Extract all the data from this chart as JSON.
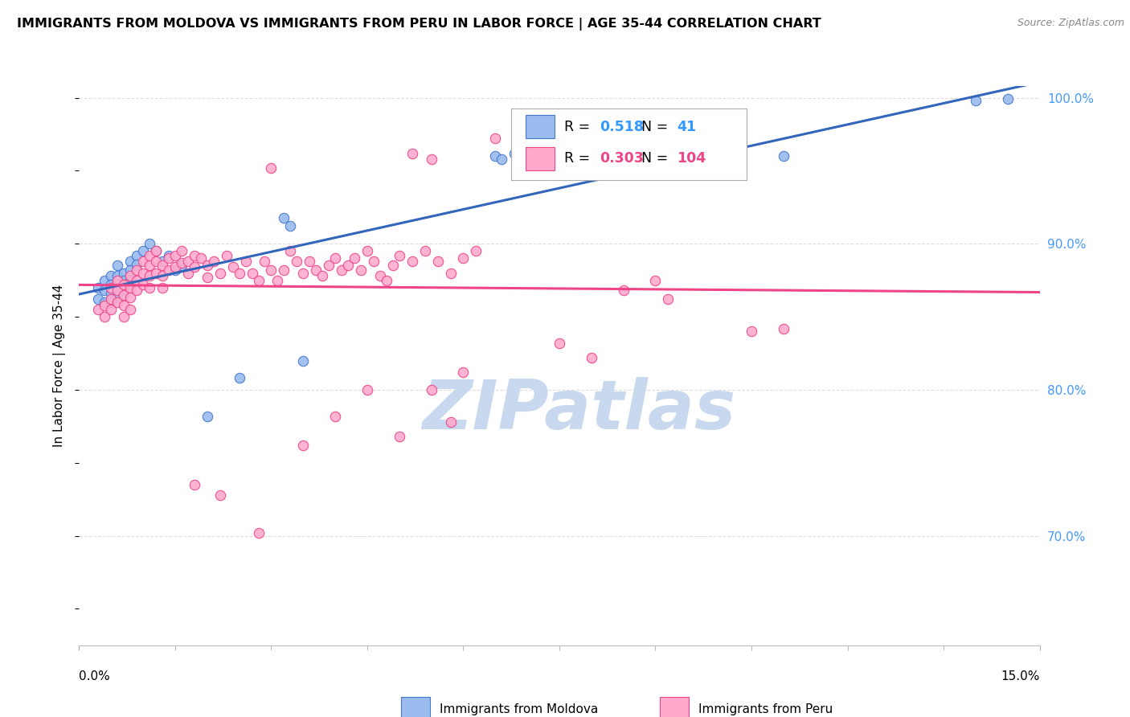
{
  "title": "IMMIGRANTS FROM MOLDOVA VS IMMIGRANTS FROM PERU IN LABOR FORCE | AGE 35-44 CORRELATION CHART",
  "source": "Source: ZipAtlas.com",
  "xmin": 0.0,
  "xmax": 0.15,
  "ymin": 0.625,
  "ymax": 1.008,
  "legend_moldova": "Immigrants from Moldova",
  "legend_peru": "Immigrants from Peru",
  "R_moldova": "0.518",
  "N_moldova": "41",
  "R_peru": "0.303",
  "N_peru": "104",
  "color_moldova_fill": "#99BBEE",
  "color_moldova_edge": "#4477CC",
  "color_peru_fill": "#FFAACC",
  "color_peru_edge": "#EE4488",
  "color_moldova_line": "#3366BB",
  "color_peru_line": "#EE4488",
  "color_R_blue": "#3399FF",
  "color_R_peru": "#EE4488",
  "watermark_color": "#C8D8EE",
  "grid_color": "#DDDDDD",
  "right_tick_color": "#4499FF",
  "yticks_right": [
    0.7,
    0.8,
    0.9,
    1.0
  ],
  "moldova_x": [
    0.003,
    0.003,
    0.004,
    0.004,
    0.004,
    0.005,
    0.005,
    0.005,
    0.005,
    0.006,
    0.006,
    0.006,
    0.006,
    0.007,
    0.007,
    0.007,
    0.008,
    0.008,
    0.008,
    0.009,
    0.009,
    0.01,
    0.011,
    0.012,
    0.013,
    0.014,
    0.015,
    0.016,
    0.02,
    0.025,
    0.032,
    0.033,
    0.035,
    0.065,
    0.066,
    0.068,
    0.085,
    0.095,
    0.11,
    0.14,
    0.145
  ],
  "moldova_y": [
    0.87,
    0.862,
    0.875,
    0.868,
    0.86,
    0.878,
    0.872,
    0.866,
    0.86,
    0.885,
    0.878,
    0.87,
    0.864,
    0.88,
    0.875,
    0.868,
    0.888,
    0.882,
    0.875,
    0.892,
    0.886,
    0.895,
    0.9,
    0.895,
    0.888,
    0.892,
    0.882,
    0.885,
    0.782,
    0.808,
    0.918,
    0.912,
    0.82,
    0.96,
    0.958,
    0.962,
    0.952,
    0.962,
    0.96,
    0.998,
    0.999
  ],
  "peru_x": [
    0.003,
    0.004,
    0.004,
    0.005,
    0.005,
    0.005,
    0.006,
    0.006,
    0.006,
    0.007,
    0.007,
    0.007,
    0.007,
    0.008,
    0.008,
    0.008,
    0.008,
    0.009,
    0.009,
    0.009,
    0.01,
    0.01,
    0.01,
    0.011,
    0.011,
    0.011,
    0.011,
    0.012,
    0.012,
    0.012,
    0.013,
    0.013,
    0.013,
    0.014,
    0.014,
    0.015,
    0.015,
    0.016,
    0.016,
    0.017,
    0.017,
    0.018,
    0.018,
    0.019,
    0.02,
    0.02,
    0.021,
    0.022,
    0.023,
    0.024,
    0.025,
    0.026,
    0.027,
    0.028,
    0.029,
    0.03,
    0.031,
    0.032,
    0.033,
    0.034,
    0.035,
    0.036,
    0.037,
    0.038,
    0.039,
    0.04,
    0.041,
    0.042,
    0.043,
    0.044,
    0.045,
    0.046,
    0.047,
    0.048,
    0.049,
    0.05,
    0.052,
    0.054,
    0.056,
    0.058,
    0.06,
    0.062,
    0.018,
    0.022,
    0.028,
    0.035,
    0.04,
    0.045,
    0.05,
    0.055,
    0.058,
    0.06,
    0.03,
    0.052,
    0.055,
    0.065,
    0.07,
    0.075,
    0.08,
    0.085,
    0.09,
    0.092,
    0.105,
    0.11
  ],
  "peru_y": [
    0.855,
    0.858,
    0.85,
    0.87,
    0.862,
    0.855,
    0.875,
    0.868,
    0.86,
    0.872,
    0.865,
    0.858,
    0.85,
    0.878,
    0.87,
    0.863,
    0.855,
    0.882,
    0.875,
    0.868,
    0.888,
    0.88,
    0.872,
    0.892,
    0.885,
    0.878,
    0.87,
    0.895,
    0.888,
    0.88,
    0.885,
    0.878,
    0.87,
    0.89,
    0.882,
    0.892,
    0.884,
    0.895,
    0.887,
    0.888,
    0.88,
    0.892,
    0.884,
    0.89,
    0.885,
    0.877,
    0.888,
    0.88,
    0.892,
    0.884,
    0.88,
    0.888,
    0.88,
    0.875,
    0.888,
    0.882,
    0.875,
    0.882,
    0.895,
    0.888,
    0.88,
    0.888,
    0.882,
    0.878,
    0.885,
    0.89,
    0.882,
    0.885,
    0.89,
    0.882,
    0.895,
    0.888,
    0.878,
    0.875,
    0.885,
    0.892,
    0.888,
    0.895,
    0.888,
    0.88,
    0.89,
    0.895,
    0.735,
    0.728,
    0.702,
    0.762,
    0.782,
    0.8,
    0.768,
    0.8,
    0.778,
    0.812,
    0.952,
    0.962,
    0.958,
    0.972,
    0.968,
    0.832,
    0.822,
    0.868,
    0.875,
    0.862,
    0.84,
    0.842
  ]
}
